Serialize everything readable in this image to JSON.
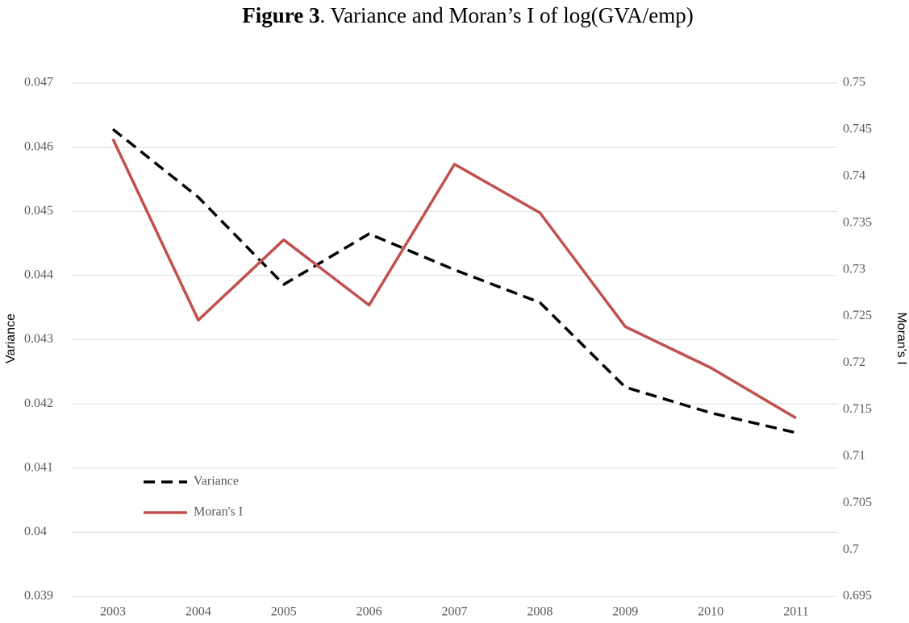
{
  "chart_data": {
    "type": "line",
    "figure_label": "Figure 3",
    "title": ". Variance and Moran’s I of log(GVA/emp)",
    "ylabel": "Variance",
    "y2label": "Moran's I",
    "categories": [
      "2003",
      "2004",
      "2005",
      "2006",
      "2007",
      "2008",
      "2009",
      "2010",
      "2011"
    ],
    "series": [
      {
        "name": "Variance",
        "color": "#000000",
        "dashed": true,
        "values": [
          0.04628,
          0.04522,
          0.04386,
          0.04465,
          0.04409,
          0.04358,
          0.04226,
          0.04186,
          0.04155
        ]
      },
      {
        "name": "Moran's I",
        "color": "#c0504d",
        "axis": "y2",
        "values": [
          0.744,
          0.7246,
          0.7332,
          0.7262,
          0.7413,
          0.7361,
          0.7239,
          0.7195,
          0.7141
        ]
      }
    ],
    "ylim": [
      0.039,
      0.047
    ],
    "yticks": [
      0.039,
      0.04,
      0.041,
      0.042,
      0.043,
      0.044,
      0.045,
      0.046,
      0.047
    ],
    "y2lim": [
      0.695,
      0.75
    ],
    "y2ticks": [
      0.695,
      0.7,
      0.705,
      0.71,
      0.715,
      0.72,
      0.725,
      0.73,
      0.735,
      0.74,
      0.745,
      0.75
    ],
    "grid": true,
    "legend": "lower left"
  }
}
